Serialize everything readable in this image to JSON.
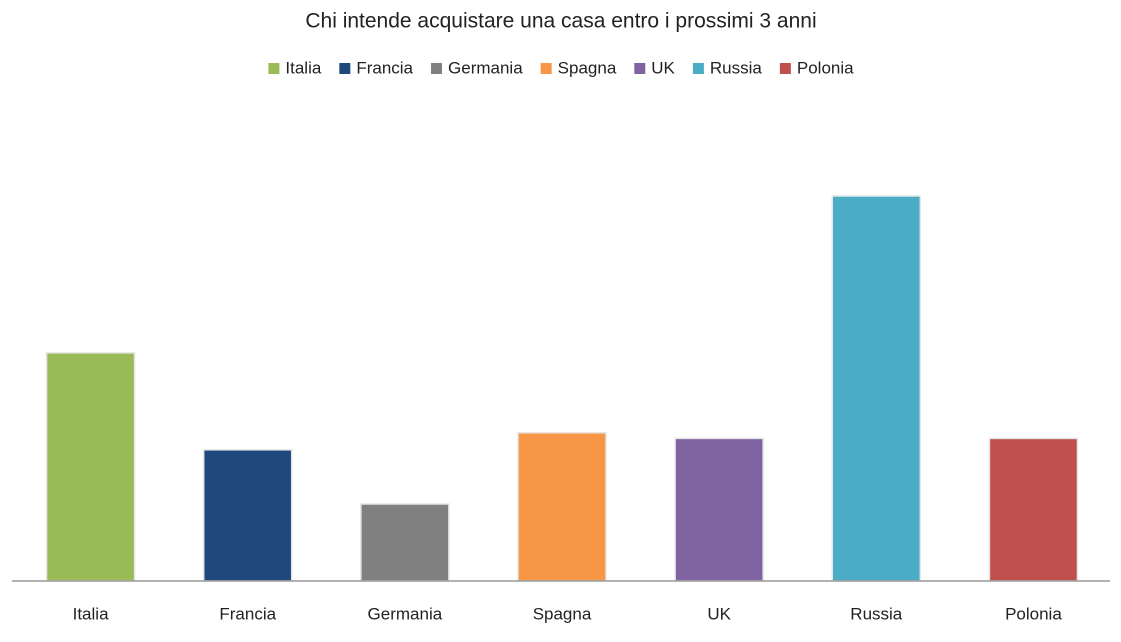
{
  "chart_data": {
    "type": "bar",
    "title": "Chi intende acquistare una casa entro i prossimi 3 anni",
    "categories": [
      "Italia",
      "Francia",
      "Germania",
      "Spagna",
      "UK",
      "Russia",
      "Polonia"
    ],
    "values": [
      16,
      9.2,
      5.4,
      10.4,
      10,
      27,
      10
    ],
    "colors": [
      "#9bbb59",
      "#1f497d",
      "#808080",
      "#f79646",
      "#8064a2",
      "#4bacc6",
      "#c0504d"
    ],
    "legend": "top",
    "grid": false
  }
}
